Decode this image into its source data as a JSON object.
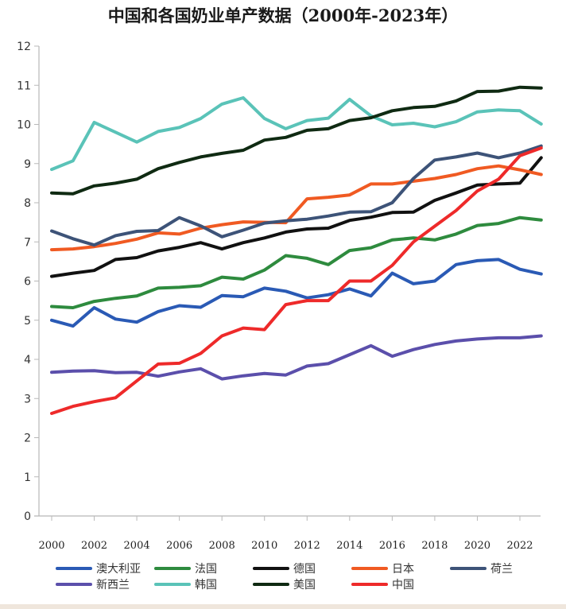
{
  "chart_data": {
    "type": "line",
    "title": "中国和各国奶业单产数据（2000年-2023年）",
    "xlabel": "",
    "ylabel": "",
    "ylim": [
      0,
      12
    ],
    "xlim": [
      2000,
      2023
    ],
    "yticks": [
      0,
      1,
      2,
      3,
      4,
      5,
      6,
      7,
      8,
      9,
      10,
      11,
      12
    ],
    "xticks": [
      2000,
      2002,
      2004,
      2006,
      2008,
      2010,
      2012,
      2014,
      2016,
      2018,
      2020,
      2022
    ],
    "grid": false,
    "legend_position": "bottom",
    "x": [
      2000,
      2001,
      2002,
      2003,
      2004,
      2005,
      2006,
      2007,
      2008,
      2009,
      2010,
      2011,
      2012,
      2013,
      2014,
      2015,
      2016,
      2017,
      2018,
      2019,
      2020,
      2021,
      2022,
      2023
    ],
    "series": [
      {
        "name": "澳大利亚",
        "color": "#2a5ab5",
        "values": [
          5.0,
          4.85,
          5.32,
          5.03,
          4.95,
          5.22,
          5.37,
          5.33,
          5.63,
          5.6,
          5.82,
          5.74,
          5.57,
          5.65,
          5.8,
          5.62,
          6.2,
          5.93,
          6.0,
          6.42,
          6.52,
          6.55,
          6.3,
          6.18
        ]
      },
      {
        "name": "法国",
        "color": "#2e8b3e",
        "values": [
          5.35,
          5.32,
          5.48,
          5.56,
          5.62,
          5.82,
          5.84,
          5.88,
          6.1,
          6.05,
          6.28,
          6.65,
          6.58,
          6.42,
          6.78,
          6.85,
          7.05,
          7.1,
          7.05,
          7.2,
          7.42,
          7.47,
          7.62,
          7.56
        ]
      },
      {
        "name": "德国",
        "color": "#111111",
        "values": [
          6.12,
          6.2,
          6.27,
          6.55,
          6.6,
          6.77,
          6.86,
          6.98,
          6.82,
          6.98,
          7.1,
          7.25,
          7.33,
          7.35,
          7.55,
          7.63,
          7.75,
          7.76,
          8.06,
          8.25,
          8.45,
          8.48,
          8.5,
          9.15
        ]
      },
      {
        "name": "日本",
        "color": "#f05a22",
        "values": [
          6.8,
          6.82,
          6.88,
          6.96,
          7.07,
          7.23,
          7.2,
          7.35,
          7.44,
          7.51,
          7.5,
          7.49,
          8.1,
          8.14,
          8.2,
          8.48,
          8.48,
          8.55,
          8.62,
          8.72,
          8.87,
          8.94,
          8.84,
          8.72
        ]
      },
      {
        "name": "荷兰",
        "color": "#3d5378",
        "values": [
          7.28,
          7.08,
          6.92,
          7.16,
          7.27,
          7.29,
          7.62,
          7.41,
          7.13,
          7.3,
          7.48,
          7.54,
          7.58,
          7.66,
          7.76,
          7.77,
          8.0,
          8.62,
          9.09,
          9.17,
          9.27,
          9.15,
          9.27,
          9.45
        ]
      },
      {
        "name": "新西兰",
        "color": "#5b4fab",
        "values": [
          3.67,
          3.7,
          3.71,
          3.66,
          3.67,
          3.57,
          3.68,
          3.76,
          3.5,
          3.58,
          3.64,
          3.6,
          3.83,
          3.89,
          4.12,
          4.35,
          4.08,
          4.25,
          4.38,
          4.47,
          4.52,
          4.55,
          4.55,
          4.6
        ]
      },
      {
        "name": "韩国",
        "color": "#5ac3b8",
        "values": [
          8.85,
          9.07,
          10.05,
          9.8,
          9.55,
          9.82,
          9.92,
          10.15,
          10.52,
          10.68,
          10.15,
          9.89,
          10.1,
          10.16,
          10.64,
          10.22,
          9.99,
          10.03,
          9.94,
          10.07,
          10.32,
          10.37,
          10.35,
          10.01
        ]
      },
      {
        "name": "美国",
        "color": "#0f2a12",
        "values": [
          8.25,
          8.23,
          8.43,
          8.5,
          8.6,
          8.87,
          9.03,
          9.17,
          9.26,
          9.34,
          9.6,
          9.67,
          9.85,
          9.89,
          10.1,
          10.17,
          10.35,
          10.43,
          10.46,
          10.6,
          10.84,
          10.85,
          10.95,
          10.93
        ]
      },
      {
        "name": "中国",
        "color": "#ee2a2a",
        "values": [
          2.62,
          2.8,
          2.92,
          3.02,
          3.45,
          3.88,
          3.9,
          4.15,
          4.6,
          4.8,
          4.76,
          5.4,
          5.5,
          5.5,
          6.0,
          6.0,
          6.4,
          7.0,
          7.4,
          7.8,
          8.3,
          8.6,
          9.2,
          9.4
        ]
      }
    ]
  }
}
